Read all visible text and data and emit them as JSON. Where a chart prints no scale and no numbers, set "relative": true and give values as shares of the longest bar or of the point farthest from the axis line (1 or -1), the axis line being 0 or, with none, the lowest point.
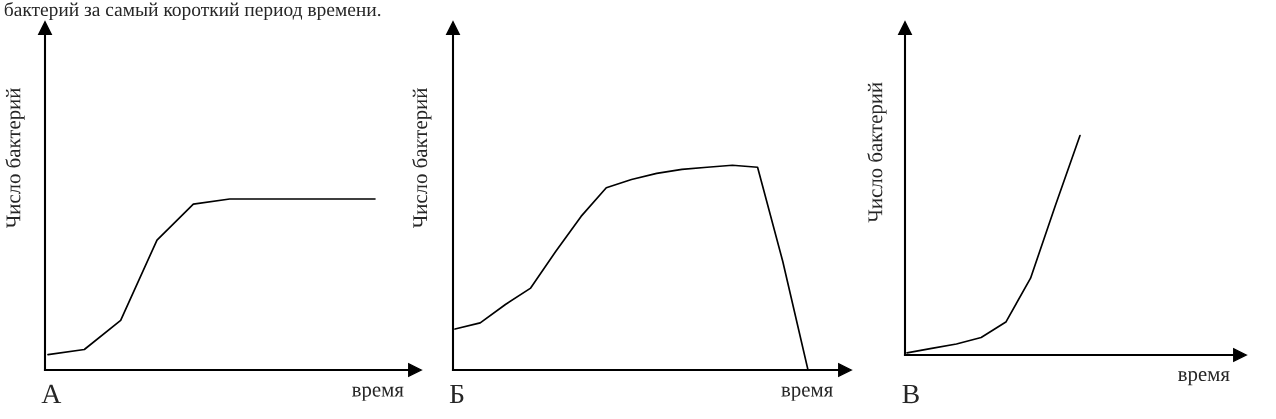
{
  "chart_data": [
    {
      "type": "line",
      "title": "А",
      "xlabel": "время",
      "ylabel": "Число бактерий",
      "relative": true,
      "annotations": [
        "бактерий за самый короткий период времени."
      ],
      "categories": [
        null,
        null,
        null,
        null,
        null,
        null,
        null,
        null,
        null,
        null
      ],
      "series": [
        {
          "color": "#000000",
          "values": [
            0.09,
            0.12,
            0.29,
            0.76,
            0.97,
            1,
            1,
            1,
            1,
            1
          ]
        }
      ]
    },
    {
      "type": "line",
      "title": "Б",
      "xlabel": "время",
      "ylabel": "Число бактерий",
      "relative": true,
      "categories": [
        null,
        null,
        null,
        null,
        null,
        null,
        null,
        null,
        null,
        null,
        null,
        null,
        null,
        null,
        null
      ],
      "series": [
        {
          "color": "#000000",
          "values": [
            0.2,
            0.23,
            0.32,
            0.4,
            0.58,
            0.75,
            0.89,
            0.93,
            0.96,
            0.98,
            0.99,
            1,
            0.99,
            0.53,
            0
          ]
        }
      ]
    },
    {
      "type": "line",
      "title": "В",
      "xlabel": "время",
      "ylabel": "Число бактерий",
      "relative": true,
      "categories": [
        null,
        null,
        null,
        null,
        null,
        null,
        null,
        null
      ],
      "series": [
        {
          "color": "#000000",
          "values": [
            0.01,
            0.03,
            0.05,
            0.08,
            0.15,
            0.35,
            0.68,
            1
          ]
        }
      ]
    }
  ]
}
